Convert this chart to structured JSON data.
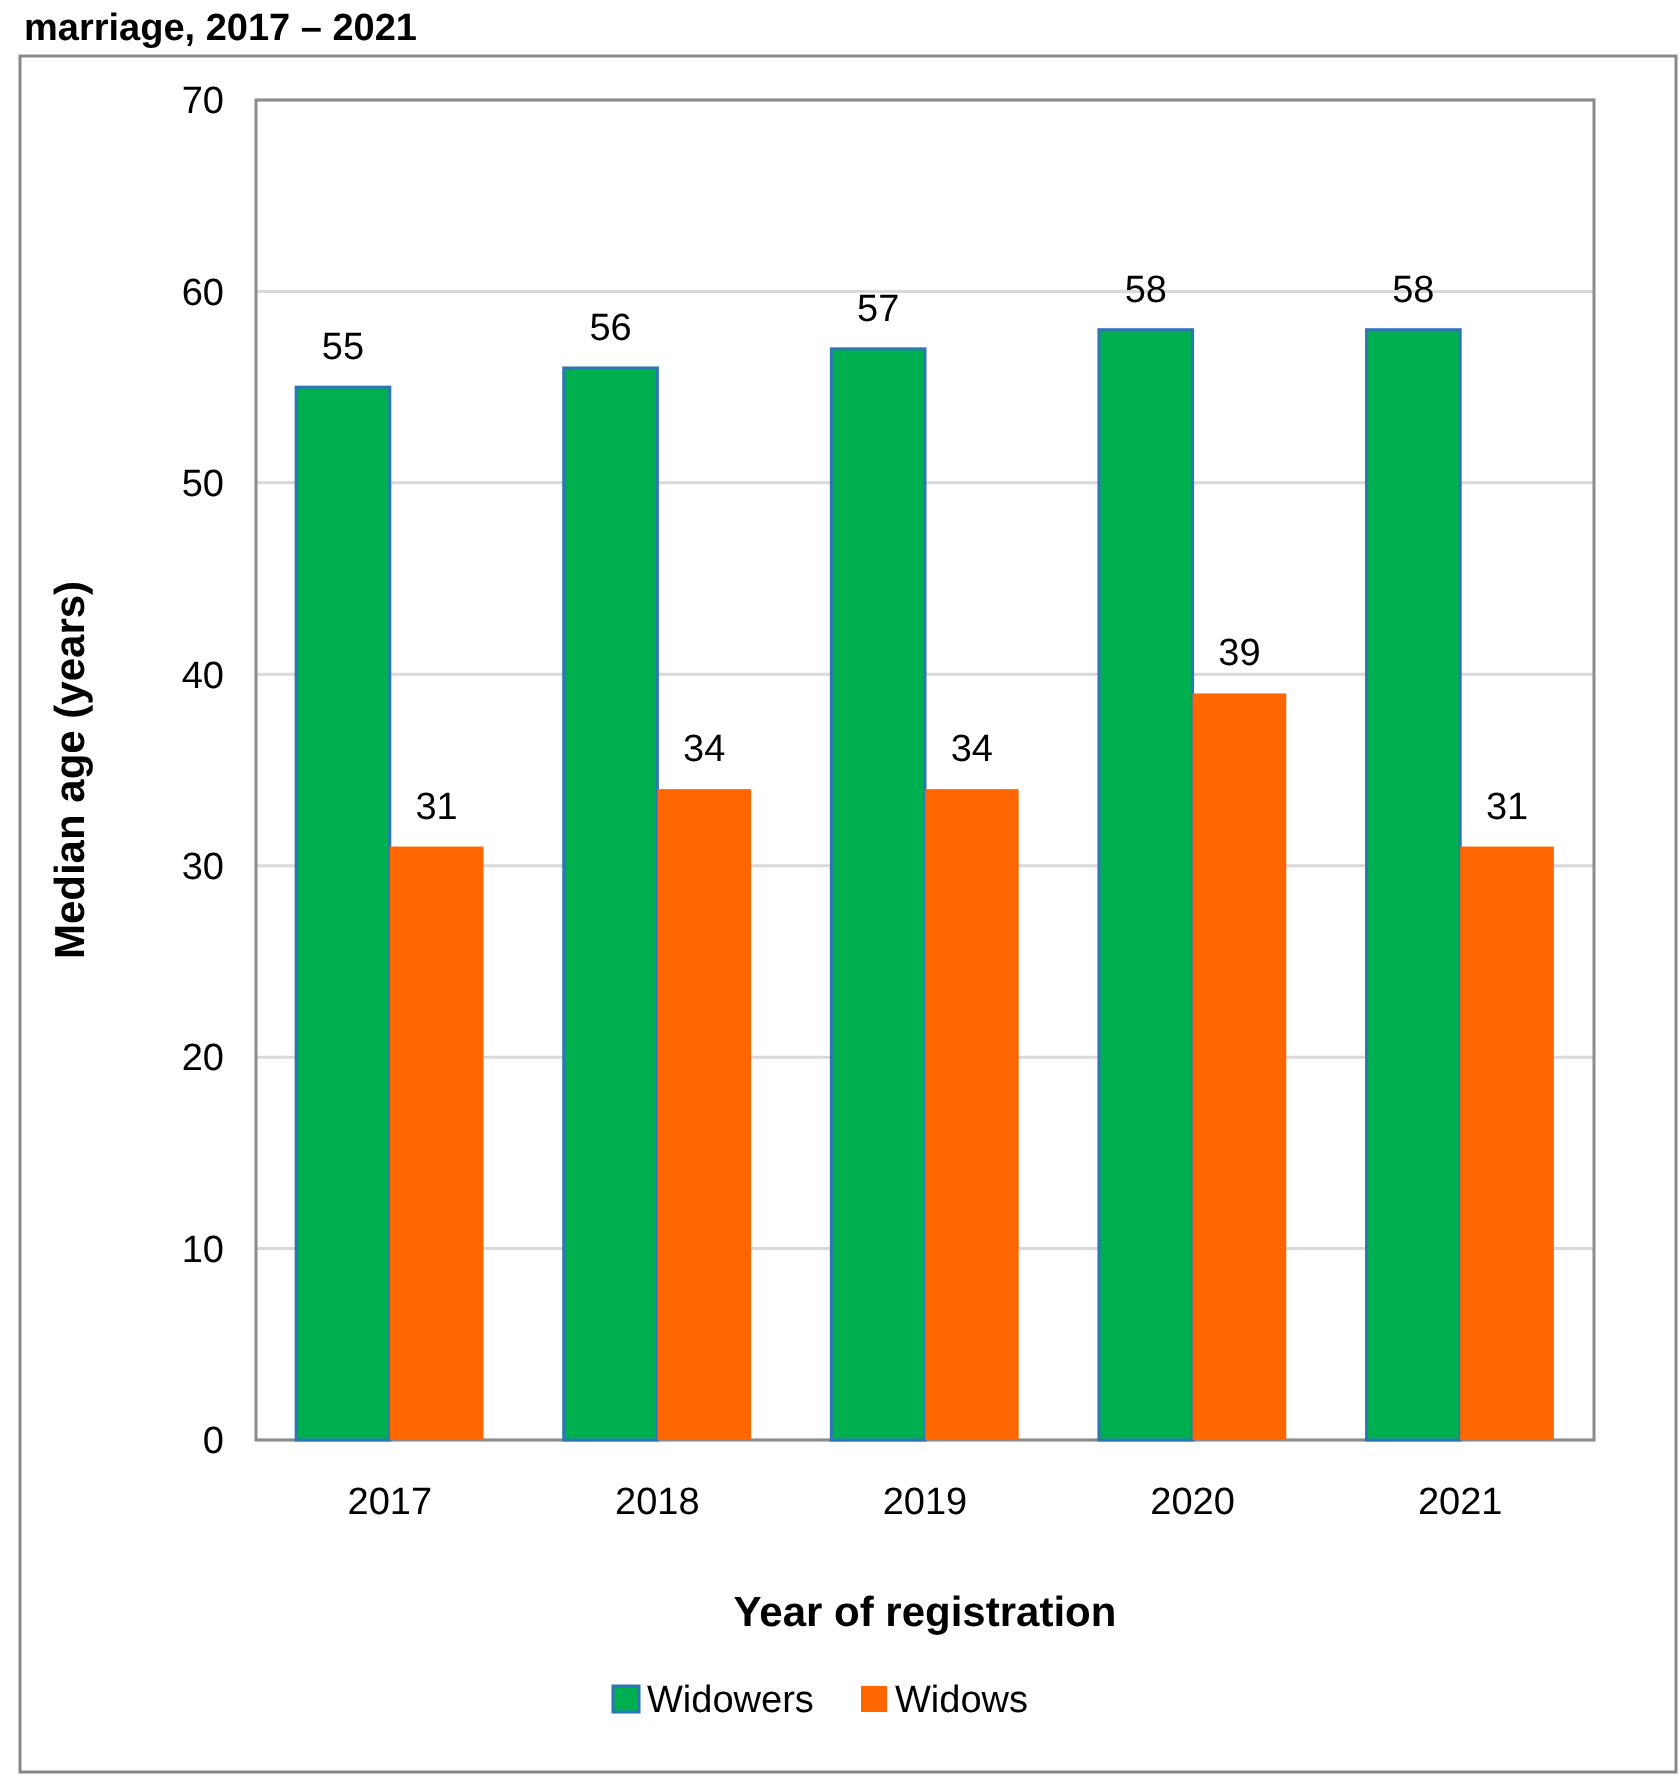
{
  "chart_data": {
    "type": "bar",
    "title": "marriage, 2017 – 2021",
    "xlabel": "Year of registration",
    "ylabel": "Median age (years)",
    "categories": [
      "2017",
      "2018",
      "2019",
      "2020",
      "2021"
    ],
    "series": [
      {
        "name": "Widowers",
        "color": "#00b050",
        "values": [
          55,
          56,
          57,
          58,
          58
        ]
      },
      {
        "name": "Widows",
        "color": "#ff6600",
        "values": [
          31,
          34,
          34,
          39,
          31
        ]
      }
    ],
    "ylim": [
      0,
      70
    ],
    "yticks": [
      0,
      10,
      20,
      30,
      40,
      50,
      60,
      70
    ],
    "grid": "y",
    "legend": "bottom",
    "data_labels": true
  }
}
